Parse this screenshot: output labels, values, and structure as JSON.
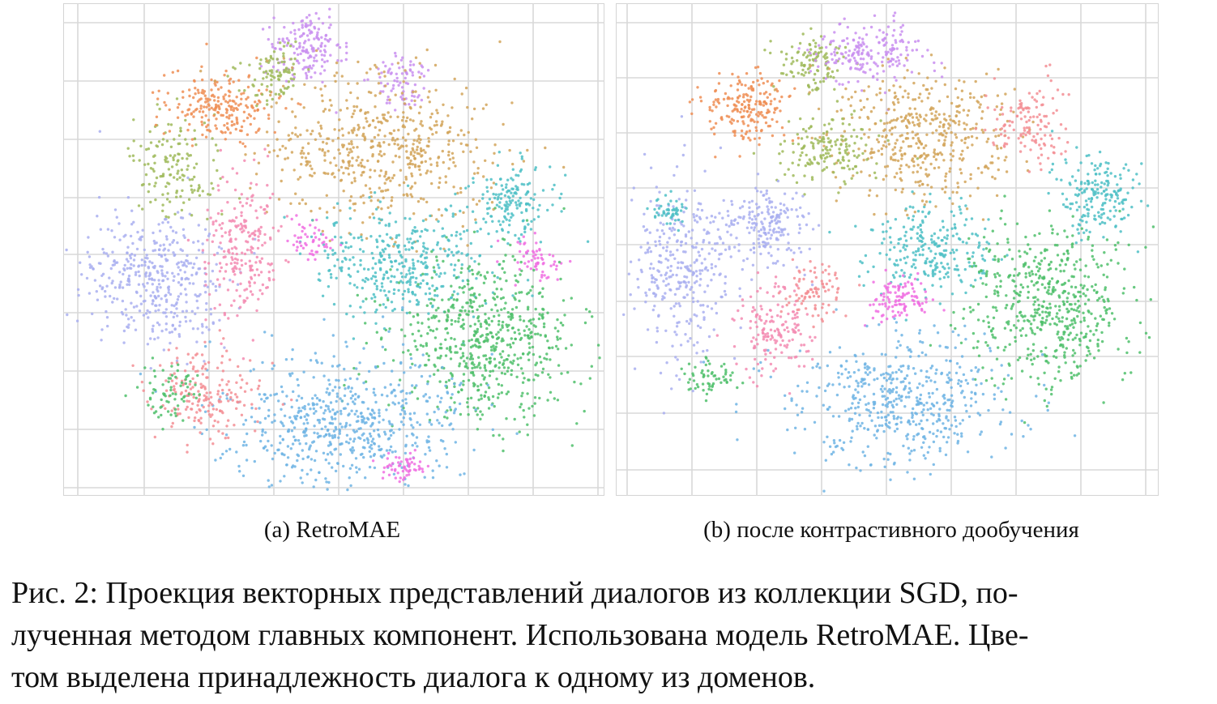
{
  "figure": {
    "subfigures": [
      {
        "label": "(a) RetroMAE"
      },
      {
        "label": "(b) после контрастивного дообучения"
      }
    ],
    "caption": {
      "lines": [
        "Рис. 2: Проекция векторных представлений диалогов из коллекции SGD, по-",
        "лученная методом главных компонент. Использована модель RetroMAE. Цве-",
        "том выделена принадлежность диалога к одному из доменов."
      ]
    }
  },
  "chart_data": [
    {
      "type": "scatter",
      "title": "(a) RetroMAE",
      "grid": true,
      "xlabel": "",
      "ylabel": "",
      "colors": [
        "#6fb4e4",
        "#4fbf6b",
        "#d2a55a",
        "#ee8e55",
        "#a9aff0",
        "#f38bb2",
        "#4ebfc6",
        "#c98ff0",
        "#9fba5a",
        "#f06fe2",
        "#f38e94"
      ],
      "clusters": [
        {
          "color": "#a9aff0",
          "cx": 0.17,
          "cy": 0.56,
          "rx": 0.12,
          "ry": 0.13,
          "n": 420
        },
        {
          "color": "#9fba5a",
          "cx": 0.21,
          "cy": 0.33,
          "rx": 0.07,
          "ry": 0.09,
          "n": 150
        },
        {
          "color": "#ee8e55",
          "cx": 0.29,
          "cy": 0.21,
          "rx": 0.09,
          "ry": 0.06,
          "n": 220
        },
        {
          "color": "#c98ff0",
          "cx": 0.45,
          "cy": 0.09,
          "rx": 0.06,
          "ry": 0.07,
          "n": 170
        },
        {
          "color": "#9fba5a",
          "cx": 0.39,
          "cy": 0.14,
          "rx": 0.05,
          "ry": 0.06,
          "n": 90
        },
        {
          "color": "#c98ff0",
          "cx": 0.63,
          "cy": 0.16,
          "rx": 0.05,
          "ry": 0.05,
          "n": 80
        },
        {
          "color": "#d2a55a",
          "cx": 0.59,
          "cy": 0.3,
          "rx": 0.19,
          "ry": 0.14,
          "n": 560
        },
        {
          "color": "#f38bb2",
          "cx": 0.33,
          "cy": 0.5,
          "rx": 0.06,
          "ry": 0.14,
          "n": 230
        },
        {
          "color": "#4ebfc6",
          "cx": 0.63,
          "cy": 0.53,
          "rx": 0.15,
          "ry": 0.1,
          "n": 380
        },
        {
          "color": "#4ebfc6",
          "cx": 0.83,
          "cy": 0.4,
          "rx": 0.07,
          "ry": 0.07,
          "n": 160
        },
        {
          "color": "#f06fe2",
          "cx": 0.87,
          "cy": 0.52,
          "rx": 0.04,
          "ry": 0.04,
          "n": 60
        },
        {
          "color": "#4fbf6b",
          "cx": 0.78,
          "cy": 0.68,
          "rx": 0.16,
          "ry": 0.14,
          "n": 640
        },
        {
          "color": "#6fb4e4",
          "cx": 0.52,
          "cy": 0.85,
          "rx": 0.19,
          "ry": 0.12,
          "n": 620
        },
        {
          "color": "#f38e94",
          "cx": 0.26,
          "cy": 0.79,
          "rx": 0.09,
          "ry": 0.08,
          "n": 190
        },
        {
          "color": "#4fbf6b",
          "cx": 0.2,
          "cy": 0.79,
          "rx": 0.05,
          "ry": 0.05,
          "n": 70
        },
        {
          "color": "#f06fe2",
          "cx": 0.63,
          "cy": 0.94,
          "rx": 0.04,
          "ry": 0.03,
          "n": 60
        },
        {
          "color": "#f06fe2",
          "cx": 0.46,
          "cy": 0.48,
          "rx": 0.04,
          "ry": 0.04,
          "n": 50
        }
      ]
    },
    {
      "type": "scatter",
      "title": "(b) после контрастивного дообучения",
      "grid": true,
      "xlabel": "",
      "ylabel": "",
      "colors": [
        "#6fb4e4",
        "#4fbf6b",
        "#d2a55a",
        "#ee8e55",
        "#a9aff0",
        "#f38bb2",
        "#4ebfc6",
        "#c98ff0",
        "#9fba5a",
        "#f06fe2",
        "#f38e94"
      ],
      "clusters": [
        {
          "color": "#ee8e55",
          "cx": 0.24,
          "cy": 0.21,
          "rx": 0.08,
          "ry": 0.06,
          "n": 200
        },
        {
          "color": "#9fba5a",
          "cx": 0.36,
          "cy": 0.12,
          "rx": 0.06,
          "ry": 0.05,
          "n": 110
        },
        {
          "color": "#c98ff0",
          "cx": 0.47,
          "cy": 0.1,
          "rx": 0.09,
          "ry": 0.06,
          "n": 200
        },
        {
          "color": "#d2a55a",
          "cx": 0.57,
          "cy": 0.27,
          "rx": 0.15,
          "ry": 0.12,
          "n": 450
        },
        {
          "color": "#9fba5a",
          "cx": 0.39,
          "cy": 0.3,
          "rx": 0.08,
          "ry": 0.06,
          "n": 160
        },
        {
          "color": "#f38e94",
          "cx": 0.76,
          "cy": 0.25,
          "rx": 0.06,
          "ry": 0.07,
          "n": 130
        },
        {
          "color": "#4ebfc6",
          "cx": 0.88,
          "cy": 0.39,
          "rx": 0.07,
          "ry": 0.08,
          "n": 190
        },
        {
          "color": "#a9aff0",
          "cx": 0.12,
          "cy": 0.55,
          "rx": 0.08,
          "ry": 0.17,
          "n": 330
        },
        {
          "color": "#4ebfc6",
          "cx": 0.1,
          "cy": 0.42,
          "rx": 0.03,
          "ry": 0.03,
          "n": 50
        },
        {
          "color": "#a9aff0",
          "cx": 0.28,
          "cy": 0.45,
          "rx": 0.07,
          "ry": 0.08,
          "n": 200
        },
        {
          "color": "#f38bb2",
          "cx": 0.29,
          "cy": 0.66,
          "rx": 0.06,
          "ry": 0.08,
          "n": 160
        },
        {
          "color": "#4ebfc6",
          "cx": 0.58,
          "cy": 0.5,
          "rx": 0.1,
          "ry": 0.08,
          "n": 250
        },
        {
          "color": "#f06fe2",
          "cx": 0.52,
          "cy": 0.6,
          "rx": 0.05,
          "ry": 0.04,
          "n": 110
        },
        {
          "color": "#4fbf6b",
          "cx": 0.8,
          "cy": 0.62,
          "rx": 0.14,
          "ry": 0.15,
          "n": 560
        },
        {
          "color": "#6fb4e4",
          "cx": 0.52,
          "cy": 0.81,
          "rx": 0.18,
          "ry": 0.12,
          "n": 520
        },
        {
          "color": "#f38e94",
          "cx": 0.36,
          "cy": 0.58,
          "rx": 0.05,
          "ry": 0.05,
          "n": 90
        },
        {
          "color": "#4fbf6b",
          "cx": 0.17,
          "cy": 0.76,
          "rx": 0.05,
          "ry": 0.04,
          "n": 60
        }
      ]
    }
  ]
}
